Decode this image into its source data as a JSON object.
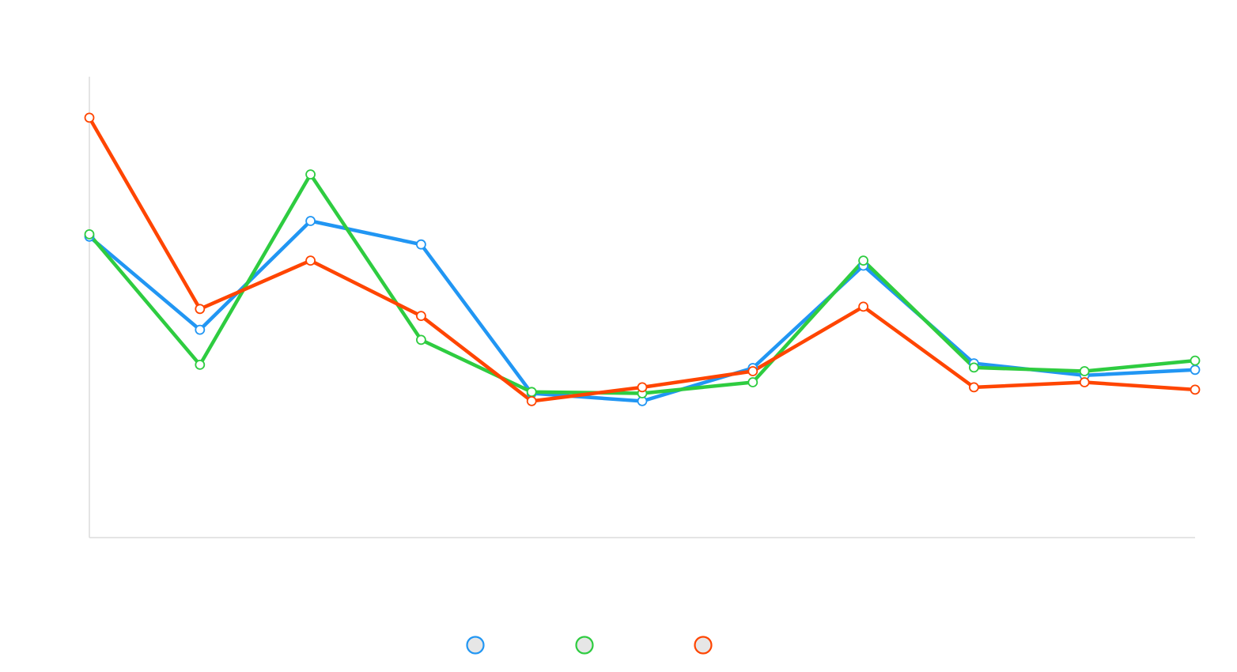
{
  "chart_data": {
    "type": "line",
    "x": [
      1,
      2,
      3,
      4,
      5,
      6,
      7,
      8,
      9,
      10,
      11
    ],
    "ylim": [
      0,
      100
    ],
    "grid": false,
    "legend_position": "bottom-center",
    "series": [
      {
        "color": "#2196f3",
        "values": [
          65.3,
          45.1,
          68.7,
          63.6,
          31.3,
          29.6,
          36.8,
          59.0,
          37.8,
          35.2,
          36.4
        ]
      },
      {
        "color": "#2ecc40",
        "values": [
          65.8,
          37.5,
          78.8,
          42.9,
          31.6,
          31.3,
          33.7,
          60.1,
          36.9,
          36.1,
          38.4
        ]
      },
      {
        "color": "#ff4500",
        "values": [
          91.1,
          49.6,
          60.1,
          48.1,
          29.6,
          32.6,
          36.1,
          50.1,
          32.6,
          33.7,
          32.1
        ]
      }
    ],
    "legend": [
      {
        "color": "#2196f3",
        "label": ""
      },
      {
        "color": "#2ecc40",
        "label": ""
      },
      {
        "color": "#ff4500",
        "label": ""
      }
    ]
  }
}
